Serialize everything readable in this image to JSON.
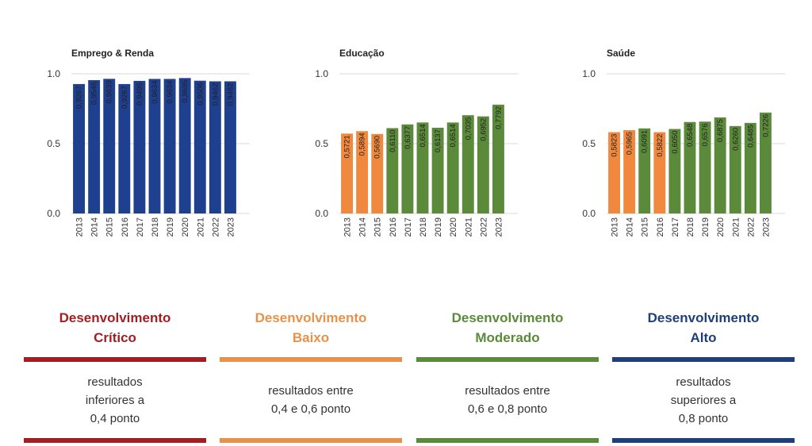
{
  "chart_data": [
    {
      "type": "bar",
      "title": "Emprego & Renda",
      "categories": [
        "2013",
        "2014",
        "2015",
        "2016",
        "2017",
        "2018",
        "2019",
        "2020",
        "2021",
        "2022",
        "2023"
      ],
      "values": [
        0.9267,
        0.9546,
        0.9639,
        0.9267,
        0.9495,
        0.9634,
        0.9634,
        0.9695,
        0.9506,
        0.9462,
        0.9462
      ],
      "value_labels": [
        "0,9267",
        "0,9546",
        "0,9639",
        "0,9267",
        "0,9495",
        "0,9634",
        "0,9634",
        "0,9695",
        "0,9506",
        "0,9462",
        "0,9462"
      ],
      "colors": [
        "#1f3f8f",
        "#1f3f8f",
        "#1f3f8f",
        "#1f3f8f",
        "#1f3f8f",
        "#1f3f8f",
        "#1f3f8f",
        "#1f3f8f",
        "#1f3f8f",
        "#1f3f8f",
        "#1f3f8f"
      ],
      "yticks": [
        "0.0",
        "0.5",
        "1.0"
      ],
      "ylim": [
        0,
        1
      ],
      "grid": true
    },
    {
      "type": "bar",
      "title": "Educação",
      "categories": [
        "2013",
        "2014",
        "2015",
        "2016",
        "2017",
        "2018",
        "2019",
        "2020",
        "2021",
        "2022",
        "2023"
      ],
      "values": [
        0.5721,
        0.5894,
        0.569,
        0.611,
        0.6377,
        0.6514,
        0.6137,
        0.6514,
        0.7035,
        0.6952,
        0.7792
      ],
      "value_labels": [
        "0,5721",
        "0,5894",
        "0,5690",
        "0,6110",
        "0,6377",
        "0,6514",
        "0,6137",
        "0,6514",
        "0,7035",
        "0,6952",
        "0,7792"
      ],
      "colors": [
        "#f0883e",
        "#f0883e",
        "#f0883e",
        "#5a8a3a",
        "#5a8a3a",
        "#5a8a3a",
        "#5a8a3a",
        "#5a8a3a",
        "#5a8a3a",
        "#5a8a3a",
        "#5a8a3a"
      ],
      "yticks": [
        "0.0",
        "0.5",
        "1.0"
      ],
      "ylim": [
        0,
        1
      ],
      "grid": true
    },
    {
      "type": "bar",
      "title": "Saúde",
      "categories": [
        "2013",
        "2014",
        "2015",
        "2016",
        "2017",
        "2018",
        "2019",
        "2020",
        "2021",
        "2022",
        "2023"
      ],
      "values": [
        0.5823,
        0.5965,
        0.6091,
        0.5822,
        0.605,
        0.6548,
        0.6576,
        0.6875,
        0.626,
        0.6485,
        0.7226
      ],
      "value_labels": [
        "0,5823",
        "0,5965",
        "0,6091",
        "0,5822",
        "0,6050",
        "0,6548",
        "0,6576",
        "0,6875",
        "0,6260",
        "0,6485",
        "0,7226"
      ],
      "colors": [
        "#f0883e",
        "#f0883e",
        "#5a8a3a",
        "#f0883e",
        "#5a8a3a",
        "#5a8a3a",
        "#5a8a3a",
        "#5a8a3a",
        "#5a8a3a",
        "#5a8a3a",
        "#5a8a3a"
      ],
      "yticks": [
        "0.0",
        "0.5",
        "1.0"
      ],
      "ylim": [
        0,
        1
      ],
      "grid": true
    }
  ],
  "legend": [
    {
      "title_line1": "Desenvolvimento",
      "title_line2": "Crítico",
      "color": "#a31e22",
      "desc_lines": [
        "resultados",
        "inferiores a",
        "0,4 ponto"
      ]
    },
    {
      "title_line1": "Desenvolvimento",
      "title_line2": "Baixo",
      "color": "#e8914a",
      "desc_lines": [
        "resultados entre",
        "0,4 e 0,6 ponto"
      ]
    },
    {
      "title_line1": "Desenvolvimento",
      "title_line2": "Moderado",
      "color": "#5a8a3a",
      "desc_lines": [
        "resultados entre",
        "0,6 e 0,8 ponto"
      ]
    },
    {
      "title_line1": "Desenvolvimento",
      "title_line2": "Alto",
      "color": "#1f3f7a",
      "desc_lines": [
        "resultados",
        "superiores a",
        "0,8 ponto"
      ]
    }
  ]
}
